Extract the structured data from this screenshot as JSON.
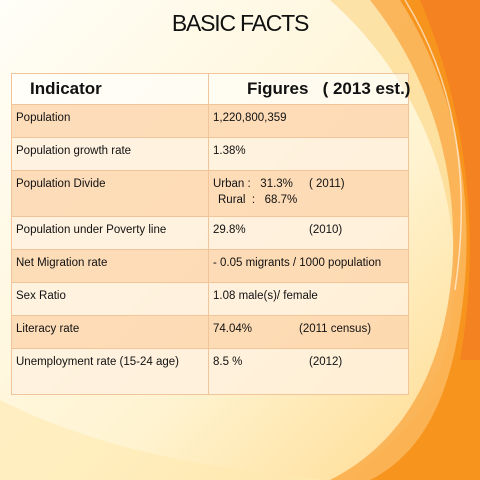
{
  "slide": {
    "title": "BASIC FACTS",
    "colors": {
      "accent": "#f7941d",
      "row_dark": "#fcd6af",
      "row_light": "#fff0de",
      "border": "#f2c49a"
    }
  },
  "table": {
    "headers": {
      "indicator": "Indicator",
      "figures": "Figures   ( 2013 est.)"
    },
    "rows": [
      {
        "indicator": "Population",
        "value": "1,220,800,359",
        "note": ""
      },
      {
        "indicator": "Population growth rate",
        "value": "1.38%",
        "note": ""
      },
      {
        "indicator": "Population Divide",
        "value": "Urban :   31.3%",
        "note": "( 2011)",
        "line2": "Rural  :   68.7%"
      },
      {
        "indicator": "Population under Poverty line",
        "value": "29.8%",
        "note": "(2010)"
      },
      {
        "indicator": "Net Migration rate",
        "value": "- 0.05 migrants / 1000 population",
        "note": ""
      },
      {
        "indicator": "Sex Ratio",
        "value": "1.08 male(s)/ female",
        "note": ""
      },
      {
        "indicator": "Literacy rate",
        "value": "74.04%",
        "note": "(2011 census)"
      },
      {
        "indicator": "Unemployment rate (15-24 age)",
        "value": "8.5 %",
        "note": "(2012)"
      }
    ]
  }
}
